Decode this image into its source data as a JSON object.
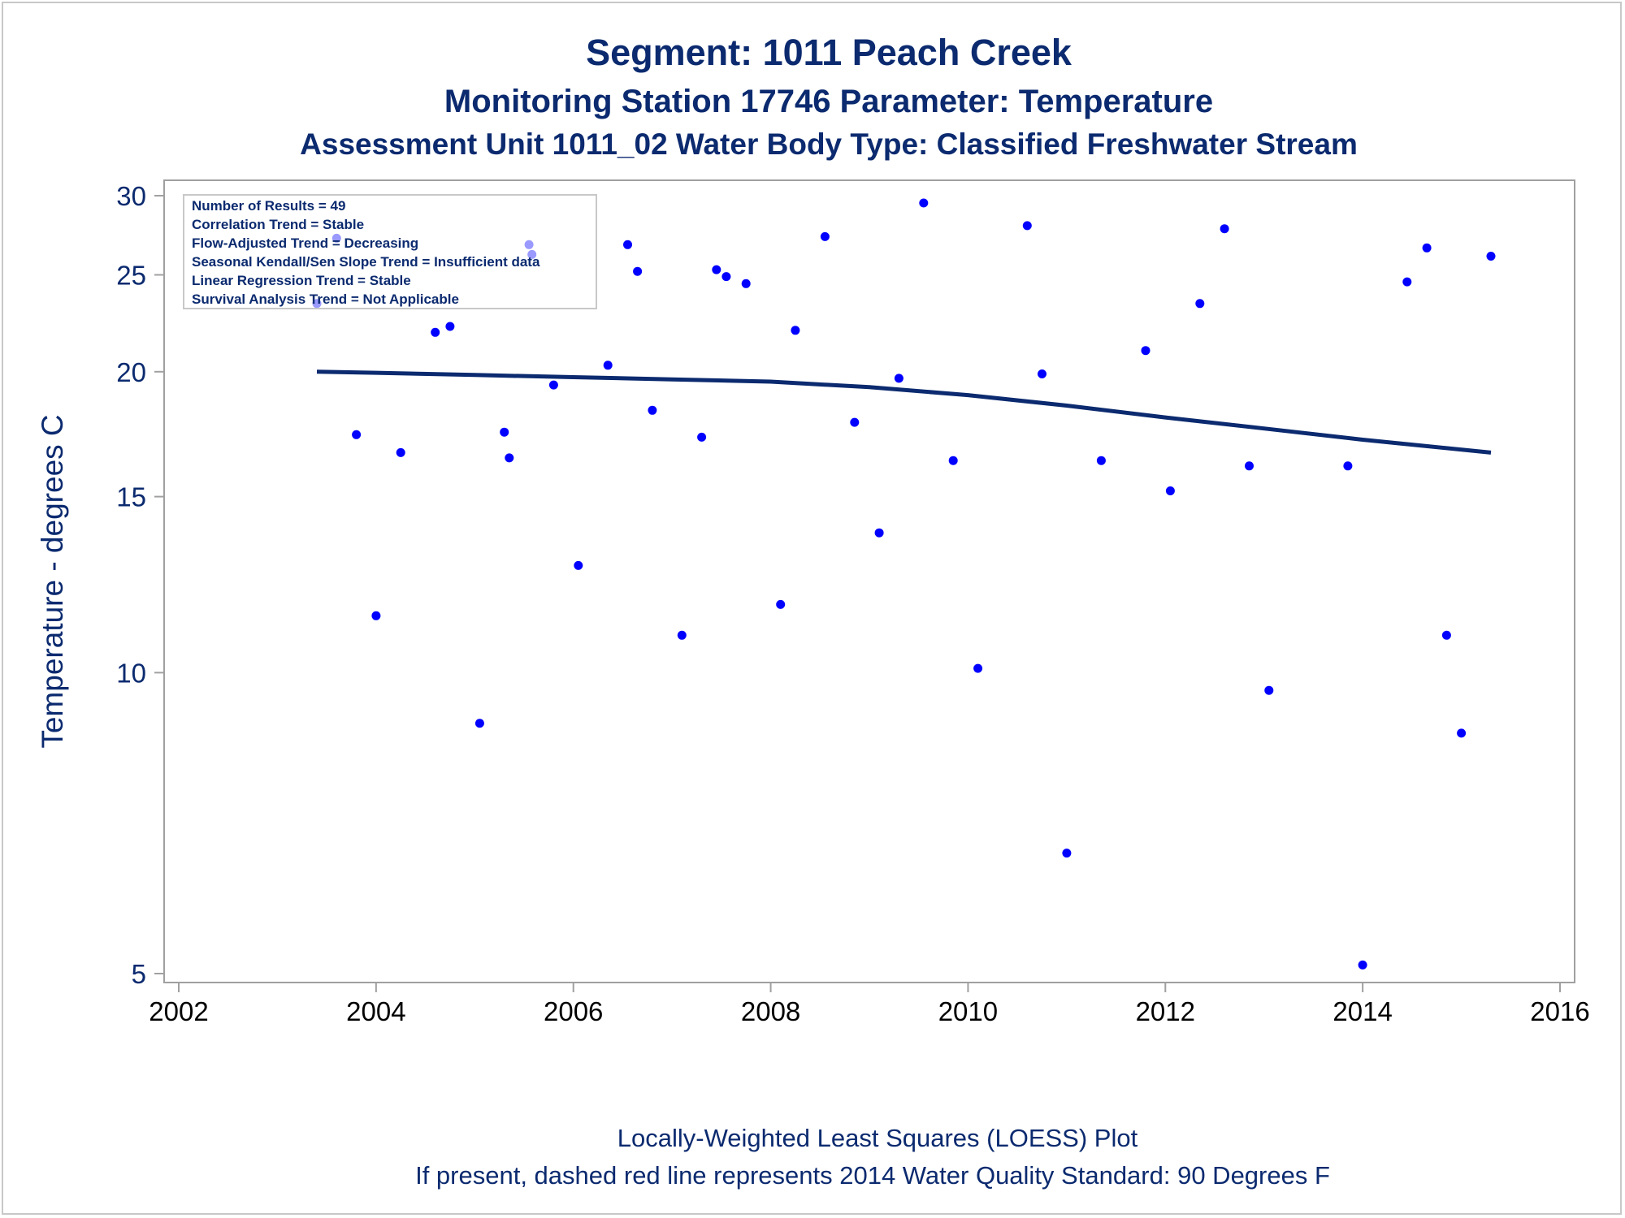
{
  "titles": {
    "line1": "Segment: 1011  Peach Creek",
    "line2": "Monitoring Station 17746 Parameter: Temperature",
    "line3": "Assessment Unit 1011_02   Water Body Type: Classified Freshwater Stream"
  },
  "footnotes": {
    "line1": "Locally-Weighted Least Squares (LOESS) Plot",
    "line2": "If present, dashed red line represents 2014 Water Quality Standard: 90   Degrees F"
  },
  "inset": {
    "lines": [
      "Number of Results = 49",
      "Correlation Trend = Stable",
      "Flow-Adjusted Trend = Decreasing",
      "Seasonal Kendall/Sen Slope Trend = Insufficient data",
      "Linear Regression Trend = Stable",
      "Survival Analysis Trend = Not Applicable"
    ]
  },
  "colors": {
    "points": "#0000ff",
    "loess": "#0b2a6f",
    "axis": "#a0a0a0",
    "text": "#0b2a6f"
  },
  "chart_data": {
    "type": "scatter",
    "xlabel": "",
    "ylabel": "Temperature - degrees C",
    "xlim": [
      2002,
      2016
    ],
    "ylim": [
      5,
      30
    ],
    "yscale": "log",
    "x_ticks": [
      2002,
      2004,
      2006,
      2008,
      2010,
      2012,
      2014,
      2016
    ],
    "y_ticks": [
      5,
      10,
      15,
      20,
      25,
      30
    ],
    "grid": false,
    "series": [
      {
        "marker": "dot",
        "points": [
          [
            2003.4,
            23.4
          ],
          [
            2003.6,
            27.2
          ],
          [
            2003.8,
            17.3
          ],
          [
            2004.0,
            11.4
          ],
          [
            2004.25,
            16.6
          ],
          [
            2004.6,
            21.9
          ],
          [
            2004.75,
            22.2
          ],
          [
            2005.05,
            8.9
          ],
          [
            2005.3,
            17.4
          ],
          [
            2005.35,
            16.4
          ],
          [
            2005.55,
            26.8
          ],
          [
            2005.58,
            26.2
          ],
          [
            2005.8,
            19.4
          ],
          [
            2006.05,
            12.8
          ],
          [
            2006.35,
            20.3
          ],
          [
            2006.55,
            26.8
          ],
          [
            2006.65,
            25.2
          ],
          [
            2006.8,
            18.3
          ],
          [
            2007.1,
            10.9
          ],
          [
            2007.3,
            17.2
          ],
          [
            2007.45,
            25.3
          ],
          [
            2007.55,
            24.9
          ],
          [
            2007.75,
            24.5
          ],
          [
            2008.1,
            11.7
          ],
          [
            2008.25,
            22.0
          ],
          [
            2008.55,
            27.3
          ],
          [
            2008.85,
            17.8
          ],
          [
            2009.1,
            13.8
          ],
          [
            2009.3,
            19.7
          ],
          [
            2009.55,
            29.5
          ],
          [
            2009.85,
            16.3
          ],
          [
            2010.1,
            10.1
          ],
          [
            2010.6,
            28.0
          ],
          [
            2010.75,
            19.9
          ],
          [
            2011.0,
            6.6
          ],
          [
            2011.35,
            16.3
          ],
          [
            2011.8,
            21.0
          ],
          [
            2012.05,
            15.2
          ],
          [
            2012.35,
            23.4
          ],
          [
            2012.6,
            27.8
          ],
          [
            2012.85,
            16.1
          ],
          [
            2013.05,
            9.6
          ],
          [
            2013.85,
            16.1
          ],
          [
            2014.0,
            5.1
          ],
          [
            2014.45,
            24.6
          ],
          [
            2014.65,
            26.6
          ],
          [
            2014.85,
            10.9
          ],
          [
            2015.0,
            8.7
          ],
          [
            2015.3,
            26.1
          ]
        ]
      },
      {
        "marker": "line",
        "points": [
          [
            2003.4,
            20.0
          ],
          [
            2004.0,
            19.95
          ],
          [
            2005.0,
            19.85
          ],
          [
            2006.0,
            19.75
          ],
          [
            2007.0,
            19.65
          ],
          [
            2008.0,
            19.55
          ],
          [
            2009.0,
            19.3
          ],
          [
            2010.0,
            18.95
          ],
          [
            2011.0,
            18.5
          ],
          [
            2012.0,
            18.0
          ],
          [
            2013.0,
            17.55
          ],
          [
            2014.0,
            17.1
          ],
          [
            2015.3,
            16.6
          ]
        ]
      }
    ]
  }
}
